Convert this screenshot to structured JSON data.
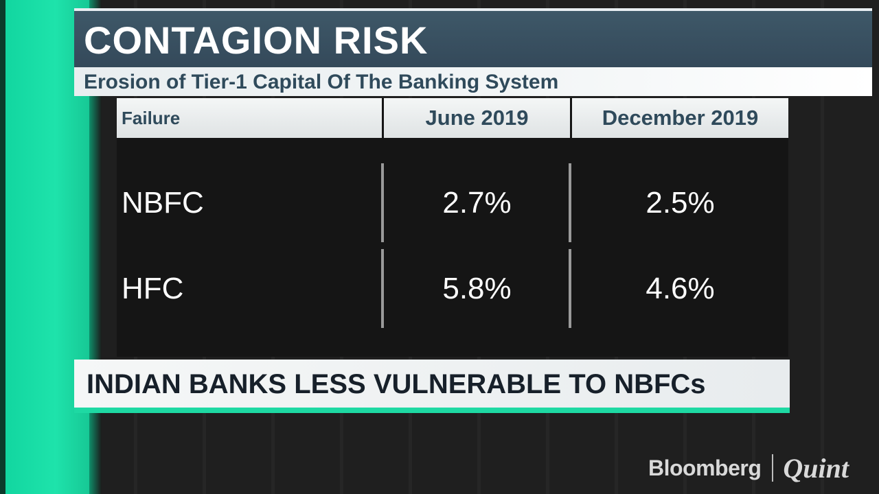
{
  "header": {
    "title": "CONTAGION RISK",
    "subtitle": "Erosion of Tier-1 Capital Of The Banking System"
  },
  "table": {
    "columns": [
      "Failure",
      "June 2019",
      "December 2019"
    ],
    "rows": [
      {
        "label": "NBFC",
        "june_2019": "2.7%",
        "december_2019": "2.5%"
      },
      {
        "label": "HFC",
        "june_2019": "5.8%",
        "december_2019": "4.6%"
      }
    ]
  },
  "headline": "INDIAN BANKS LESS VULNERABLE TO NBFCs",
  "brand": {
    "primary": "Bloomberg",
    "secondary": "Quint"
  },
  "colors": {
    "accent_green": "#1ed9a3",
    "title_band": "#3e5868",
    "subtitle_text": "#2f4a5b"
  }
}
